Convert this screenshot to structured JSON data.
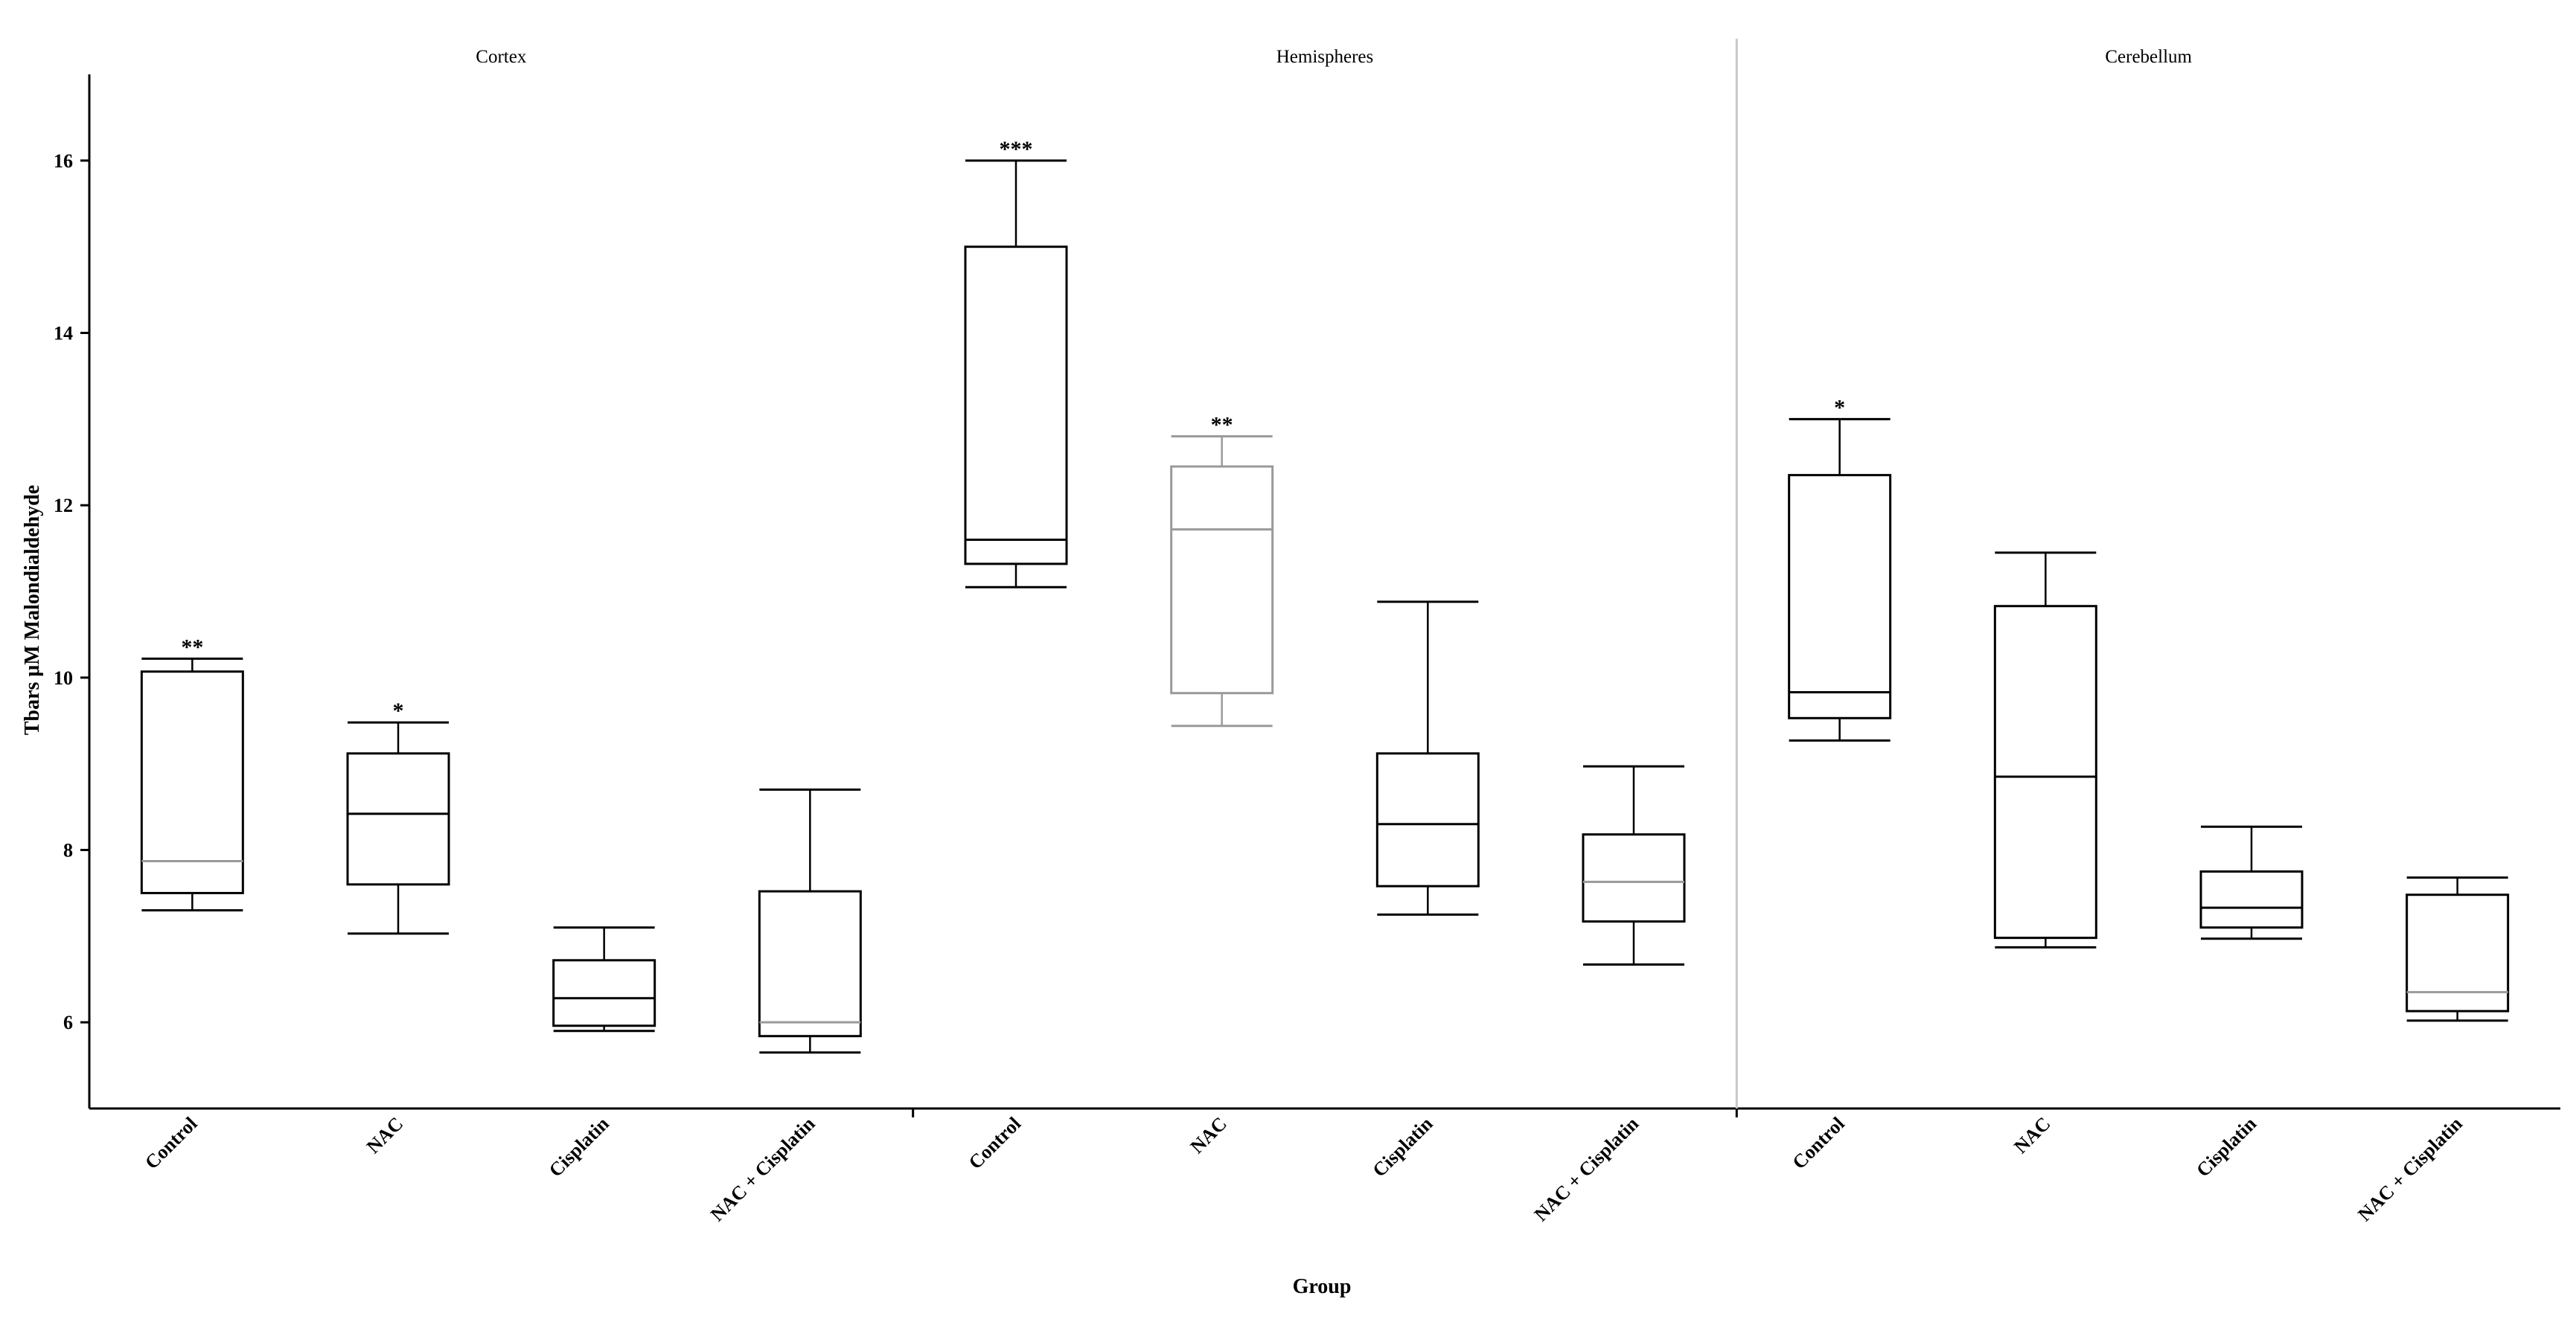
{
  "chart_data": {
    "type": "box",
    "xlabel": "Group",
    "ylabel": "Tbars μM Malondialdehyde",
    "ylim": [
      5,
      17
    ],
    "yticks": [
      6,
      8,
      10,
      12,
      14,
      16
    ],
    "grid": false,
    "panels": [
      {
        "title": "Cortex",
        "groups": [
          {
            "category": "Control",
            "min": 7.3,
            "q1": 7.5,
            "median": 7.87,
            "q3": 10.07,
            "max": 10.22,
            "sig": "**",
            "box_color": "#000000",
            "median_color": "#9a9a9a"
          },
          {
            "category": "NAC",
            "min": 7.03,
            "q1": 7.6,
            "median": 8.42,
            "q3": 9.12,
            "max": 9.48,
            "sig": "*",
            "box_color": "#000000",
            "median_color": "#000000"
          },
          {
            "category": "Cisplatin",
            "min": 5.9,
            "q1": 5.96,
            "median": 6.28,
            "q3": 6.72,
            "max": 7.1,
            "sig": "",
            "box_color": "#000000",
            "median_color": "#000000"
          },
          {
            "category": "NAC + Cisplatin",
            "min": 5.65,
            "q1": 5.84,
            "median": 6.0,
            "q3": 7.52,
            "max": 8.7,
            "sig": "",
            "box_color": "#000000",
            "median_color": "#9a9a9a"
          }
        ]
      },
      {
        "title": "Hemispheres",
        "groups": [
          {
            "category": "Control",
            "min": 11.05,
            "q1": 11.32,
            "median": 11.6,
            "q3": 15.0,
            "max": 16.0,
            "sig": "***",
            "box_color": "#000000",
            "median_color": "#000000"
          },
          {
            "category": "NAC",
            "min": 9.44,
            "q1": 9.82,
            "median": 11.72,
            "q3": 12.45,
            "max": 12.8,
            "sig": "**",
            "box_color": "#9a9a9a",
            "median_color": "#9a9a9a"
          },
          {
            "category": "Cisplatin",
            "min": 7.25,
            "q1": 7.58,
            "median": 8.3,
            "q3": 9.12,
            "max": 10.88,
            "sig": "",
            "box_color": "#000000",
            "median_color": "#000000"
          },
          {
            "category": "NAC + Cisplatin",
            "min": 6.67,
            "q1": 7.17,
            "median": 7.63,
            "q3": 8.18,
            "max": 8.97,
            "sig": "",
            "box_color": "#000000",
            "median_color": "#9a9a9a"
          }
        ]
      },
      {
        "title": "Cerebellum",
        "groups": [
          {
            "category": "Control",
            "min": 9.27,
            "q1": 9.53,
            "median": 9.83,
            "q3": 12.35,
            "max": 13.0,
            "sig": "*",
            "box_color": "#000000",
            "median_color": "#000000"
          },
          {
            "category": "NAC",
            "min": 6.87,
            "q1": 6.98,
            "median": 8.85,
            "q3": 10.83,
            "max": 11.45,
            "sig": "",
            "box_color": "#000000",
            "median_color": "#000000"
          },
          {
            "category": "Cisplatin",
            "min": 6.97,
            "q1": 7.1,
            "median": 7.33,
            "q3": 7.75,
            "max": 8.27,
            "sig": "",
            "box_color": "#000000",
            "median_color": "#000000"
          },
          {
            "category": "NAC + Cisplatin",
            "min": 6.02,
            "q1": 6.13,
            "median": 6.35,
            "q3": 7.48,
            "max": 7.68,
            "sig": "",
            "box_color": "#000000",
            "median_color": "#9a9a9a"
          }
        ]
      }
    ]
  }
}
